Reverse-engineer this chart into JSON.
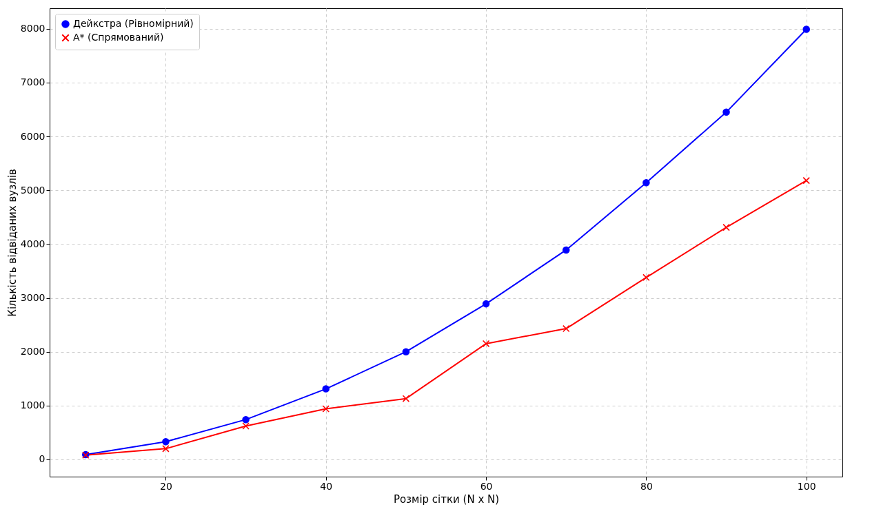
{
  "chart_data": {
    "type": "line",
    "xlabel": "Розмір сітки (N x N)",
    "ylabel": "Кількість відвіданих вузлів",
    "x": [
      10,
      20,
      30,
      40,
      50,
      60,
      70,
      80,
      90,
      100
    ],
    "series": [
      {
        "name": "Дейкстра (Рівномірний)",
        "color": "#0000ff",
        "marker": "circle",
        "values": [
          90,
          330,
          740,
          1310,
          2000,
          2890,
          3890,
          5140,
          6450,
          7990
        ]
      },
      {
        "name": "A* (Спрямований)",
        "color": "#ff0000",
        "marker": "cross",
        "values": [
          80,
          200,
          620,
          940,
          1130,
          2150,
          2430,
          3380,
          4310,
          5180
        ]
      }
    ],
    "xlim": [
      5.5,
      104.5
    ],
    "xticks": [
      20,
      40,
      60,
      80,
      100
    ],
    "ylim": [
      -320,
      8380
    ],
    "yticks": [
      0,
      1000,
      2000,
      3000,
      4000,
      5000,
      6000,
      7000,
      8000
    ],
    "grid": true,
    "legend": "top left",
    "line_style": "solid"
  }
}
